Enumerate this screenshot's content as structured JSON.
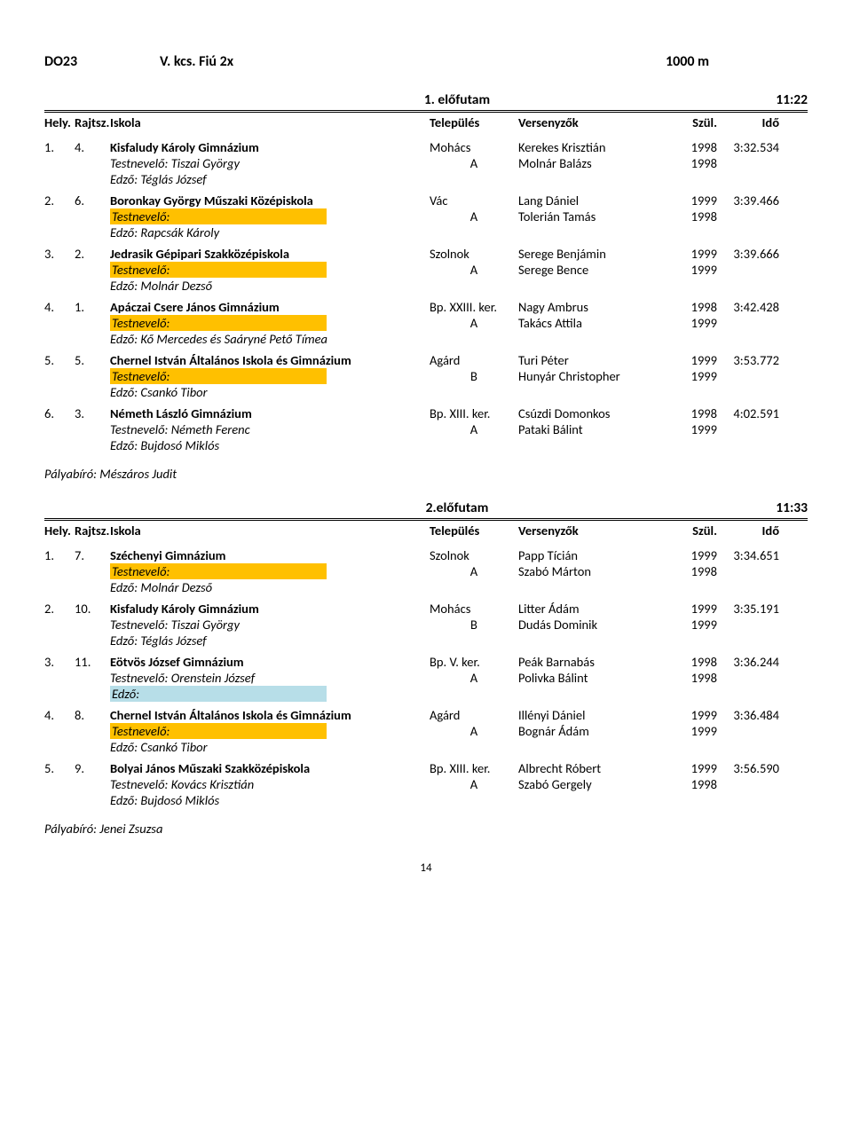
{
  "title": {
    "code": "DO23",
    "category": "V. kcs. Fiú 2x",
    "distance": "1000 m"
  },
  "columns": {
    "place": "Hely.",
    "start": "Rajtsz.",
    "school": "Iskola",
    "town": "Település",
    "name": "Versenyzők",
    "year": "Szül.",
    "time": "Idő"
  },
  "heats": [
    {
      "label": "1. előfutam",
      "time": "11:22",
      "entries": [
        {
          "place": "1.",
          "start": "4.",
          "school": "Kisfaludy Károly Gimnázium",
          "town": "Mohács",
          "rowers": [
            {
              "name": "Kerekes Krisztián",
              "year": "1998",
              "lane": "",
              "time": "3:32.534",
              "trainer": "Testnevelő: Tiszai György",
              "hl": ""
            },
            {
              "name": "Molnár Balázs",
              "year": "1998",
              "lane": "A",
              "time": ""
            }
          ],
          "coach": "Edző: Téglás József",
          "coach_hl": ""
        },
        {
          "place": "2.",
          "start": "6.",
          "school": "Boronkay György Műszaki Középiskola",
          "town": "Vác",
          "rowers": [
            {
              "name": "Lang Dániel",
              "year": "1999",
              "lane": "",
              "time": "3:39.466",
              "trainer": "Testnevelő:",
              "hl": "orange"
            },
            {
              "name": "Tolerián Tamás",
              "year": "1998",
              "lane": "A",
              "time": ""
            }
          ],
          "coach": "Edző: Rapcsák Károly",
          "coach_hl": ""
        },
        {
          "place": "3.",
          "start": "2.",
          "school": "Jedrasik Gépipari Szakközépiskola",
          "town": "Szolnok",
          "rowers": [
            {
              "name": "Serege Benjámin",
              "year": "1999",
              "lane": "",
              "time": "3:39.666",
              "trainer": "Testnevelő:",
              "hl": "orange"
            },
            {
              "name": "Serege Bence",
              "year": "1999",
              "lane": "A",
              "time": ""
            }
          ],
          "coach": "Edző: Molnár Dezső",
          "coach_hl": ""
        },
        {
          "place": "4.",
          "start": "1.",
          "school": "Apáczai Csere János Gimnázium",
          "town": "Bp. XXIII. ker.",
          "rowers": [
            {
              "name": "Nagy Ambrus",
              "year": "1998",
              "lane": "",
              "time": "3:42.428",
              "trainer": "Testnevelő:",
              "hl": "orange"
            },
            {
              "name": "Takács Attila",
              "year": "1999",
              "lane": "A",
              "time": ""
            }
          ],
          "coach": "Edző: Kő Mercedes és Saáryné Pető Tímea",
          "coach_hl": ""
        },
        {
          "place": "5.",
          "start": "5.",
          "school": "Chernel István Általános Iskola és Gimnázium",
          "town": "Agárd",
          "rowers": [
            {
              "name": "Turi Péter",
              "year": "1999",
              "lane": "",
              "time": "3:53.772",
              "trainer": "Testnevelő:",
              "hl": "orange"
            },
            {
              "name": "Hunyár Christopher",
              "year": "1999",
              "lane": "B",
              "time": ""
            }
          ],
          "coach": "Edző: Csankó Tibor",
          "coach_hl": ""
        },
        {
          "place": "6.",
          "start": "3.",
          "school": "Németh László Gimnázium",
          "town": "Bp. XIII. ker.",
          "rowers": [
            {
              "name": "Csúzdi Domonkos",
              "year": "1998",
              "lane": "",
              "time": "4:02.591",
              "trainer": "Testnevelő: Németh Ferenc",
              "hl": ""
            },
            {
              "name": "Pataki Bálint",
              "year": "1999",
              "lane": "A",
              "time": ""
            }
          ],
          "coach": "Edző: Bujdosó Miklós",
          "coach_hl": ""
        }
      ],
      "referee": "Pályabíró: Mészáros Judit"
    },
    {
      "label": "2.előfutam",
      "time": "11:33",
      "entries": [
        {
          "place": "1.",
          "start": "7.",
          "school": "Széchenyi Gimnázium",
          "town": "Szolnok",
          "rowers": [
            {
              "name": "Papp Tícián",
              "year": "1999",
              "lane": "",
              "time": "3:34.651",
              "trainer": "Testnevelő:",
              "hl": "orange"
            },
            {
              "name": "Szabó Márton",
              "year": "1998",
              "lane": "A",
              "time": ""
            }
          ],
          "coach": "Edző: Molnár Dezső",
          "coach_hl": ""
        },
        {
          "place": "2.",
          "start": "10.",
          "school": "Kisfaludy Károly Gimnázium",
          "town": "Mohács",
          "rowers": [
            {
              "name": "Litter Ádám",
              "year": "1999",
              "lane": "",
              "time": "3:35.191",
              "trainer": "Testnevelő: Tiszai György",
              "hl": ""
            },
            {
              "name": "Dudás Dominik",
              "year": "1999",
              "lane": "B",
              "time": ""
            }
          ],
          "coach": "Edző: Téglás József",
          "coach_hl": ""
        },
        {
          "place": "3.",
          "start": "11.",
          "school": "Eötvös József Gimnázium",
          "town": "Bp. V. ker.",
          "rowers": [
            {
              "name": "Peák Barnabás",
              "year": "1998",
              "lane": "",
              "time": "3:36.244",
              "trainer": "Testnevelő: Orenstein József",
              "hl": ""
            },
            {
              "name": "Polivka Bálint",
              "year": "1998",
              "lane": "A",
              "time": ""
            }
          ],
          "coach": "Edző:",
          "coach_hl": "blue"
        },
        {
          "place": "4.",
          "start": "8.",
          "school": "Chernel István Általános Iskola és Gimnázium",
          "town": "Agárd",
          "rowers": [
            {
              "name": "Illényi Dániel",
              "year": "1999",
              "lane": "",
              "time": "3:36.484",
              "trainer": "Testnevelő:",
              "hl": "orange"
            },
            {
              "name": "Bognár Ádám",
              "year": "1999",
              "lane": "A",
              "time": ""
            }
          ],
          "coach": "Edző: Csankó Tibor",
          "coach_hl": ""
        },
        {
          "place": "5.",
          "start": "9.",
          "school": "Bolyai János Műszaki Szakközépiskola",
          "town": "Bp. XIII. ker.",
          "rowers": [
            {
              "name": "Albrecht Róbert",
              "year": "1999",
              "lane": "",
              "time": "3:56.590",
              "trainer": "Testnevelő: Kovács Krisztián",
              "hl": ""
            },
            {
              "name": "Szabó Gergely",
              "year": "1998",
              "lane": "A",
              "time": ""
            }
          ],
          "coach": "Edző: Bujdosó Miklós",
          "coach_hl": ""
        }
      ],
      "referee": "Pályabíró: Jenei Zsuzsa"
    }
  ],
  "page_number": "14",
  "colors": {
    "orange": "#ffc000",
    "blue": "#b7dee8"
  }
}
